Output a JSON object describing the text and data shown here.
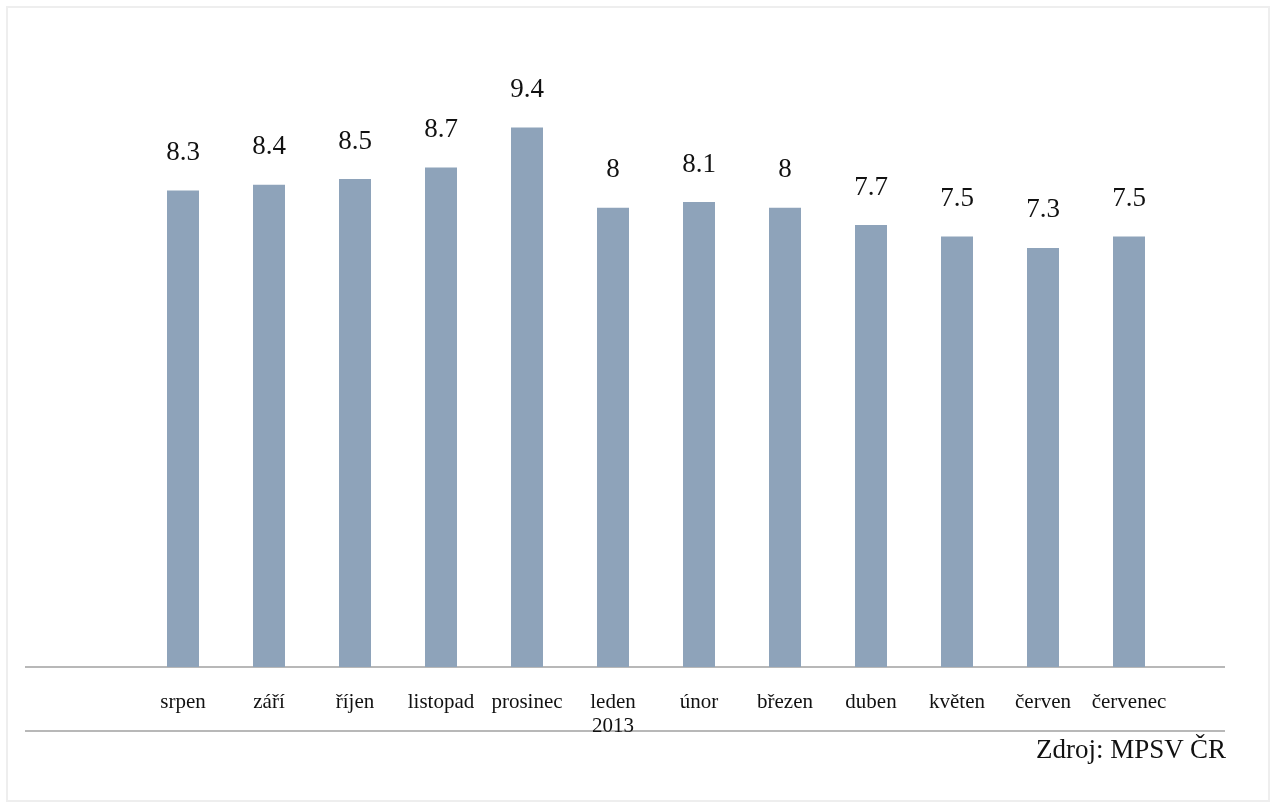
{
  "chart_data": {
    "type": "bar",
    "categories": [
      "srpen",
      "září",
      "říjen",
      "listopad",
      "prosinec",
      "leden 2013",
      "únor",
      "březen",
      "duben",
      "květen",
      "červen",
      "červenec"
    ],
    "values": [
      8.3,
      8.4,
      8.5,
      8.7,
      9.4,
      8,
      8.1,
      8,
      7.7,
      7.5,
      7.3,
      7.5
    ],
    "color": "#8ea3ba",
    "data_labels": true,
    "annotations": [
      "Zdroj: MPSV ČR"
    ]
  }
}
